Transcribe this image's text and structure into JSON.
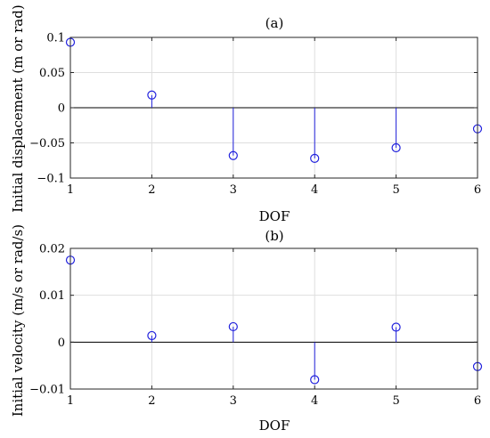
{
  "colors": {
    "stem": "#2222dd",
    "grid": "#dedede",
    "axis": "#262626",
    "background": "#ffffff"
  },
  "chart_data": [
    {
      "type": "stem",
      "title": "(a)",
      "xlabel": "DOF",
      "ylabel": "Initial displacement (m or rad)",
      "x": [
        1,
        2,
        3,
        4,
        5,
        6
      ],
      "values": [
        0.093,
        0.018,
        -0.068,
        -0.072,
        -0.057,
        -0.03
      ],
      "xlim": [
        1,
        6
      ],
      "ylim": [
        -0.1,
        0.1
      ],
      "xticks": [
        1,
        2,
        3,
        4,
        5,
        6
      ],
      "yticks": [
        -0.1,
        -0.05,
        0,
        0.05,
        0.1
      ],
      "xtick_labels": [
        "1",
        "2",
        "3",
        "4",
        "5",
        "6"
      ],
      "ytick_labels": [
        "−0.1",
        "−0.05",
        "0",
        "0.05",
        "0.1"
      ],
      "grid": true
    },
    {
      "type": "stem",
      "title": "(b)",
      "xlabel": "DOF",
      "ylabel": "Initial velocity (m/s or rad/s)",
      "x": [
        1,
        2,
        3,
        4,
        5,
        6
      ],
      "values": [
        0.0175,
        0.0014,
        0.0033,
        -0.008,
        0.0032,
        -0.0052
      ],
      "xlim": [
        1,
        6
      ],
      "ylim": [
        -0.01,
        0.02
      ],
      "xticks": [
        1,
        2,
        3,
        4,
        5,
        6
      ],
      "yticks": [
        -0.01,
        0,
        0.01,
        0.02
      ],
      "xtick_labels": [
        "1",
        "2",
        "3",
        "4",
        "5",
        "6"
      ],
      "ytick_labels": [
        "−0.01",
        "0",
        "0.01",
        "0.02"
      ],
      "grid": true
    }
  ]
}
